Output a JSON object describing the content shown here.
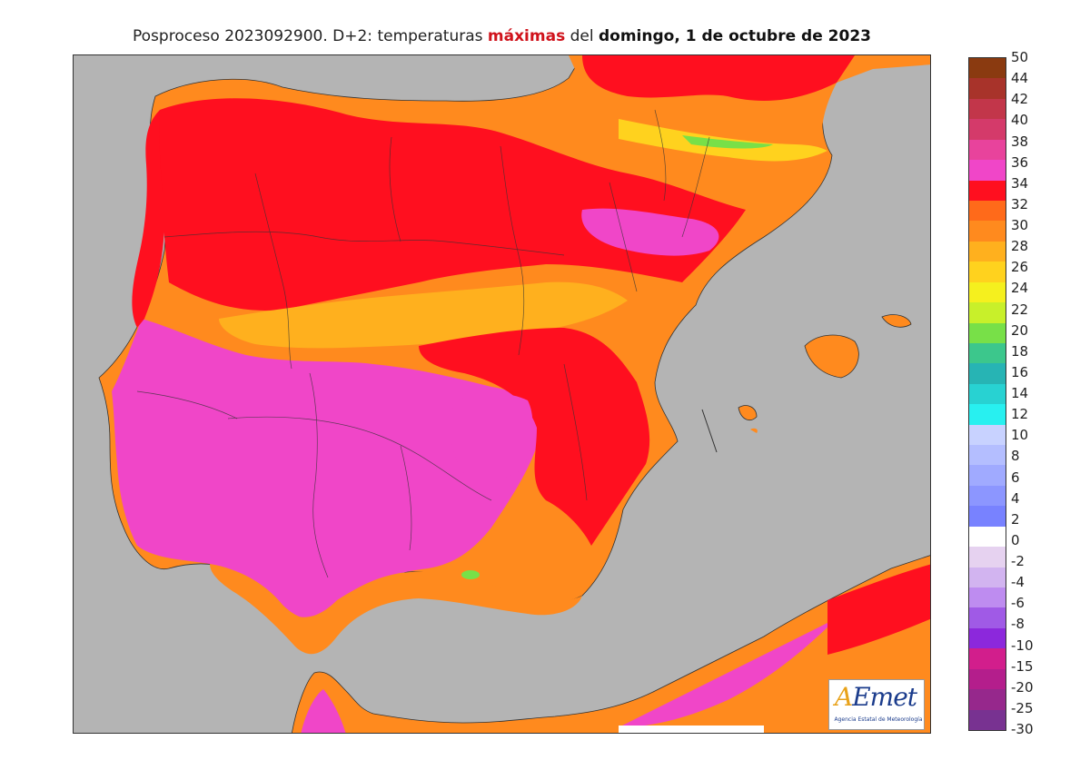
{
  "title": {
    "prefix": "Posproceso 2023092900. D+2: temperaturas ",
    "highlight": "máximas",
    "mid": " del ",
    "bold": "domingo, 1 de octubre de 2023"
  },
  "legend": {
    "labels": [
      "50",
      "44",
      "42",
      "40",
      "38",
      "36",
      "34",
      "32",
      "30",
      "28",
      "26",
      "24",
      "22",
      "20",
      "18",
      "16",
      "14",
      "12",
      "10",
      "8",
      "6",
      "4",
      "2",
      "0",
      "-2",
      "-4",
      "-6",
      "-8",
      "-10",
      "-15",
      "-20",
      "-25",
      "-30"
    ],
    "colors": [
      "#8a3a10",
      "#a8332a",
      "#c2364a",
      "#d43a6a",
      "#e8439c",
      "#f046c8",
      "#ff0f1f",
      "#ff6a1a",
      "#ff8a1e",
      "#ffb01e",
      "#ffd21e",
      "#f5f01e",
      "#c8f02a",
      "#78e048",
      "#3cc78c",
      "#27b4b4",
      "#28d2d2",
      "#28f0f0",
      "#c8d2ff",
      "#b4beff",
      "#a0aaff",
      "#8c96ff",
      "#7882ff",
      "#ffffff",
      "#e6d2f0",
      "#d2b4f0",
      "#be8cf0",
      "#a05ae6",
      "#8c28dc",
      "#d21e8c",
      "#b41e8c",
      "#96288c",
      "#783291"
    ]
  },
  "logo": {
    "text": "AEmet",
    "subtitle": "Agencia Estatal de Meteorología"
  },
  "palette": {
    "sea": "#b4b4b4",
    "magenta": "#f046c8",
    "red": "#ff0f1f",
    "orange": "#ff8a1e",
    "yellow": "#ffd21e",
    "green": "#78e048",
    "title_highlight": "#d0121b"
  }
}
